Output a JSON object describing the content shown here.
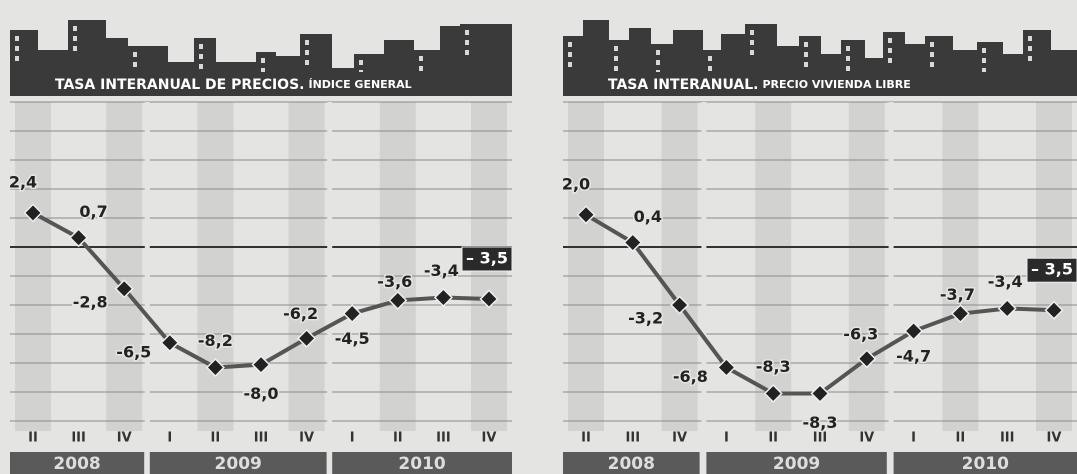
{
  "chart_data": [
    {
      "type": "line",
      "title": "TASA INTERANUAL DE PRECIOS.",
      "subtitle": "ÍNDICE GENERAL",
      "groups": [
        {
          "year": "2008",
          "quarters": [
            "II",
            "III",
            "IV"
          ]
        },
        {
          "year": "2009",
          "quarters": [
            "I",
            "II",
            "III",
            "IV"
          ]
        },
        {
          "year": "2010",
          "quarters": [
            "I",
            "II",
            "III",
            "IV"
          ]
        }
      ],
      "values": [
        2.4,
        0.7,
        -2.8,
        -6.5,
        -8.2,
        -8.0,
        -6.2,
        -4.5,
        -3.6,
        -3.4,
        -3.5
      ],
      "value_labels": [
        "2,4",
        "0,7",
        "-2,8",
        "-6,5",
        "-8,2",
        "-8,0",
        "-6,2",
        "-4,5",
        "-3,6",
        "-3,4",
        "– 3,5"
      ],
      "color": "#555555",
      "ylim": [
        -12,
        10
      ]
    },
    {
      "type": "line",
      "title": "TASA INTERANUAL.",
      "subtitle": "PRECIO VIVIENDA LIBRE",
      "groups": [
        {
          "year": "2008",
          "quarters": [
            "II",
            "III",
            "IV"
          ]
        },
        {
          "year": "2009",
          "quarters": [
            "I",
            "II",
            "III",
            "IV"
          ]
        },
        {
          "year": "2010",
          "quarters": [
            "I",
            "II",
            "III",
            "IV"
          ]
        }
      ],
      "values": [
        2.0,
        0.4,
        -3.2,
        -6.8,
        -8.3,
        -8.3,
        -6.3,
        -4.7,
        -3.7,
        -3.4,
        -3.5
      ],
      "value_labels": [
        "2,0",
        "0,4",
        "-3,2",
        "-6,8",
        "-8,3",
        "-8,3",
        "-6,3",
        "-4,7",
        "-3,7",
        "-3,4",
        "– 3,5"
      ],
      "color": "#555555",
      "ylim": [
        -10,
        8.5
      ]
    }
  ]
}
